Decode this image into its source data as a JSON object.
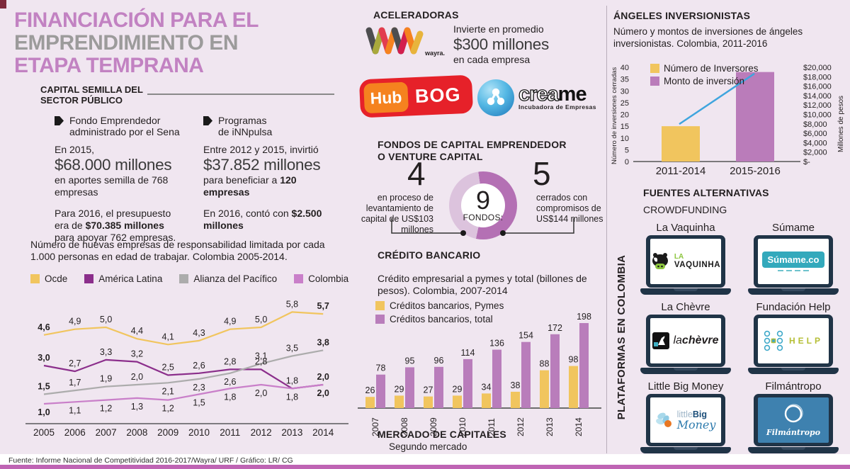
{
  "page": {
    "bg": "#F0E6F0",
    "bottom_bar_color": "#BF64B4",
    "footer_source": "Fuente: Informe Nacional de Competitividad 2016-2017/Wayra/ URF / Gráfico: LR/ CG"
  },
  "title": {
    "line1": "FINANCIACIÓN PARA EL",
    "line2": "EMPRENDIMIENTO EN",
    "line3": "ETAPA TEMPRANA",
    "color_pink": "#C282C2",
    "color_gray": "#9C9B9B"
  },
  "capital_semilla": {
    "heading_line1": "CAPITAL SEMILLA DEL",
    "heading_line2": "SECTOR PÚBLICO",
    "fondo": {
      "title_line1": "Fondo Emprendedor",
      "title_line2": "administrado por el Sena",
      "p1_intro": "En 2015,",
      "p1_big": "$68.000 millones",
      "p1_rest": "en aportes semilla de 768 empresas",
      "p2_pre": "Para 2016, el presupuesto era de ",
      "p2_bold": "$70.385 millones",
      "p2_post": " para apoyar 762 empresas."
    },
    "innpulsa": {
      "title_line1": "Programas",
      "title_line2": "de iNNpulsa",
      "p1_intro": "Entre 2012 y 2015, invirtió",
      "p1_big": "$37.852 millones",
      "p1_pre": "para beneficiar a ",
      "p1_bold": "120 empresas",
      "p2_pre": "En 2016, contó con ",
      "p2_bold": "$2.500 millones"
    }
  },
  "aceleradoras": {
    "heading": "ACELERADORAS",
    "wayra_label": "wayra.",
    "invest_line1": "Invierte en promedio",
    "invest_big": "$300 millones",
    "invest_line3": "en cada empresa",
    "hubbog": {
      "hub": "Hub",
      "bog": "BOG"
    },
    "creame": {
      "name1": "crea",
      "name2": "me",
      "tagline": "Incubadora de Empresas"
    }
  },
  "fondos": {
    "heading_line1": "FONDOS DE CAPITAL EMPRENDEDOR",
    "heading_line2": "O VENTURE CAPITAL",
    "left_number": "4",
    "left_text": "en proceso de levantamiento de capital de US$103 millones",
    "center_number": "9",
    "center_label": "FONDOS:",
    "right_number": "5",
    "right_text": "cerrados con compromisos de US$144 millones"
  },
  "credito": {
    "heading": "CRÉDITO BANCARIO"
  },
  "mercado": {
    "heading": "MERCADO DE CAPITALES",
    "subtitle": "Segundo mercado"
  },
  "angeles": {
    "heading": "ÁNGELES INVERSIONISTAS"
  },
  "fuentes": {
    "heading": "FUENTES ALTERNATIVAS",
    "subheading": "CROWDFUNDING",
    "side_label": "PLATAFORMAS EN COLOMBIA",
    "platforms": [
      {
        "name": "La Vaquinha",
        "logo_line1": "LA",
        "logo_line2": "VAQUINHA",
        "brand_color": "#8DC63F"
      },
      {
        "name": "Súmame",
        "logo_text": "Súmame.co",
        "brand_color": "#33A9BC"
      },
      {
        "name": "La Chèvre",
        "logo_prefix": "la",
        "logo_text": "chèvre",
        "brand_color": "#3FB0C4"
      },
      {
        "name": "Fundación Help",
        "logo_text": "HELP",
        "brand_color": "#B5BE35"
      },
      {
        "name": "Little Big Money",
        "logo_word1": "little",
        "logo_word2": "Big",
        "logo_word3": "Money",
        "brand_color": "#2E7BAD"
      },
      {
        "name": "Filmántropo",
        "logo_text": "Filmántropo",
        "brand_color": "#3E81AF"
      }
    ]
  },
  "chart_data": [
    {
      "id": "empresas_line",
      "type": "line",
      "title": "Número de nuevas empresas de responsabilidad limitada por cada 1.000 personas en edad de trabajar. Colombia 2005-2014.",
      "categories": [
        "2005",
        "2006",
        "2007",
        "2008",
        "2009",
        "2010",
        "2011",
        "2012",
        "2013",
        "2014"
      ],
      "series": [
        {
          "name": "Ocde",
          "color": "#F1C55E",
          "values": [
            4.6,
            4.9,
            5.0,
            4.4,
            4.1,
            4.3,
            4.9,
            5.0,
            5.8,
            5.7
          ]
        },
        {
          "name": "América Latina",
          "color": "#8B2E8B",
          "values": [
            3.0,
            2.7,
            3.3,
            3.2,
            2.5,
            2.6,
            2.8,
            2.8,
            1.8,
            2.0
          ]
        },
        {
          "name": "Alianza del Pacífico",
          "color": "#ACACAC",
          "values": [
            1.5,
            1.7,
            1.9,
            2.0,
            2.1,
            2.3,
            2.6,
            3.1,
            3.5,
            3.8
          ]
        },
        {
          "name": "Colombia",
          "color": "#C97FC9",
          "values": [
            1.0,
            1.1,
            1.2,
            1.3,
            1.2,
            1.5,
            1.8,
            2.0,
            1.8,
            2.0
          ]
        }
      ],
      "legend_position": "top",
      "grid": false,
      "ylim": [
        0.8,
        6.2
      ]
    },
    {
      "id": "credito_bars",
      "type": "bar",
      "title": "Crédito empresarial a pymes y total (billones de pesos). Colombia, 2007-2014",
      "categories": [
        "2007",
        "2008",
        "2009",
        "2010",
        "2011",
        "2012",
        "2013",
        "2014"
      ],
      "series": [
        {
          "name": "Créditos bancarios, Pymes",
          "color": "#F1C55E",
          "values": [
            26,
            29,
            27,
            29,
            34,
            38,
            88,
            98
          ]
        },
        {
          "name": "Créditos bancarios, total",
          "color": "#B97DBB",
          "values": [
            78,
            95,
            96,
            114,
            136,
            154,
            172,
            198
          ]
        }
      ],
      "legend_position": "top",
      "grid": false
    },
    {
      "id": "angeles_chart",
      "type": "bar",
      "title": "Número y montos de inversiones de ángeles inversionistas. Colombia, 2011-2016",
      "categories": [
        "2011-2014",
        "2015-2016"
      ],
      "bars": [
        {
          "label": "Número de Inversores",
          "color": "#F1C55E",
          "value": 15,
          "category": "2011-2014"
        },
        {
          "label": "Monto de inversión",
          "color": "#BA7CBA",
          "value": 38,
          "category": "2015-2016"
        }
      ],
      "line": {
        "color": "#3FA5DE",
        "values": [
          15,
          37
        ]
      },
      "legend": [
        "Número de Inversores",
        "Monto de inversión"
      ],
      "left_axis": {
        "label": "Número de inversiones cerradas",
        "ticks": [
          0,
          5,
          10,
          15,
          20,
          25,
          30,
          35,
          40
        ],
        "max": 40
      },
      "right_axis": {
        "label": "Millones de pesos",
        "ticks": [
          "$-",
          "$2,000",
          "$4,000",
          "$6,000",
          "$8,000",
          "$10,000",
          "$12,000",
          "$14,000",
          "$16,000",
          "$18,000",
          "$20,000"
        ]
      }
    },
    {
      "id": "fondos_donut",
      "type": "pie",
      "center_value": 9,
      "slices": [
        {
          "label": "cerrados con compromisos de US$144 millones",
          "value": 5,
          "color": "#B470B4"
        },
        {
          "label": "en proceso de levantamiento de capital de US$103 millones",
          "value": 4,
          "color": "#DCC3DD"
        }
      ]
    }
  ]
}
